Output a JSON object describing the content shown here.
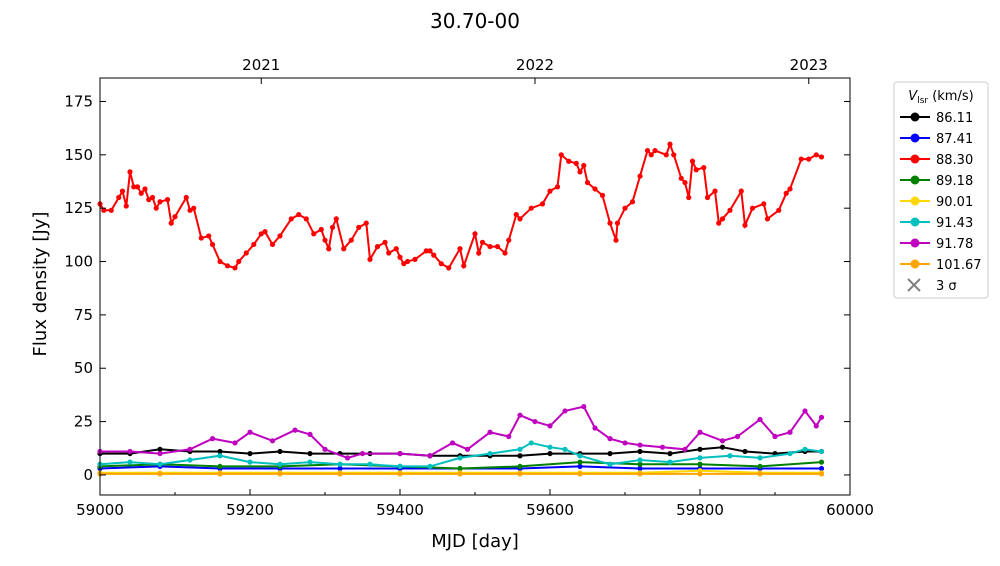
{
  "chart_data": {
    "type": "line",
    "title": "30.70-00",
    "xlabel": "MJD [day]",
    "ylabel": "Flux density [Jy]",
    "xlim": [
      59000,
      60000
    ],
    "ylim": [
      -9.4,
      186
    ],
    "xticks": [
      59000,
      59200,
      59400,
      59600,
      59800,
      60000
    ],
    "yticks": [
      0,
      25,
      50,
      75,
      100,
      125,
      150,
      175
    ],
    "top_axis": {
      "labels": [
        "2021",
        "2022",
        "2023"
      ],
      "mjd": [
        59215,
        59580,
        59945
      ]
    },
    "grid": false,
    "legend": {
      "title": "V_lsr (km/s)",
      "title_main": "V",
      "title_sub": "lsr",
      "title_unit": " (km/s)",
      "placement": "outside-right",
      "sigma_label": "3 σ",
      "sigma_color": "#808080"
    },
    "series": [
      {
        "name": "86.11",
        "color": "#000000",
        "x": [
          59000,
          59040,
          59080,
          59120,
          59160,
          59200,
          59240,
          59280,
          59320,
          59360,
          59400,
          59440,
          59480,
          59520,
          59560,
          59600,
          59640,
          59680,
          59720,
          59760,
          59800,
          59830,
          59860,
          59900,
          59940,
          59962
        ],
        "y": [
          10,
          10,
          12,
          11,
          11,
          10,
          11,
          10,
          10,
          10,
          10,
          9,
          9,
          9,
          9,
          10,
          10,
          10,
          11,
          10,
          12,
          13,
          11,
          10,
          11,
          11
        ]
      },
      {
        "name": "87.41",
        "color": "#0000ff",
        "x": [
          59000,
          59080,
          59160,
          59240,
          59320,
          59400,
          59480,
          59560,
          59640,
          59720,
          59800,
          59880,
          59962
        ],
        "y": [
          3,
          4,
          3,
          3,
          3,
          3,
          3,
          3,
          4,
          3,
          3,
          3,
          3
        ]
      },
      {
        "name": "88.30",
        "color": "#ff0000",
        "x": [
          59000,
          59005,
          59015,
          59025,
          59030,
          59035,
          59040,
          59045,
          59050,
          59055,
          59060,
          59065,
          59070,
          59075,
          59080,
          59090,
          59095,
          59100,
          59115,
          59120,
          59125,
          59135,
          59145,
          59150,
          59160,
          59170,
          59180,
          59185,
          59195,
          59205,
          59215,
          59220,
          59230,
          59240,
          59255,
          59265,
          59275,
          59285,
          59295,
          59300,
          59305,
          59310,
          59315,
          59325,
          59335,
          59345,
          59355,
          59360,
          59370,
          59380,
          59385,
          59395,
          59400,
          59405,
          59410,
          59420,
          59435,
          59440,
          59445,
          59455,
          59465,
          59480,
          59485,
          59500,
          59505,
          59510,
          59520,
          59530,
          59540,
          59545,
          59555,
          59560,
          59575,
          59590,
          59600,
          59610,
          59615,
          59625,
          59635,
          59640,
          59645,
          59650,
          59660,
          59670,
          59680,
          59688,
          59690,
          59700,
          59710,
          59720,
          59730,
          59735,
          59740,
          59755,
          59760,
          59765,
          59775,
          59780,
          59785,
          59790,
          59795,
          59805,
          59810,
          59820,
          59825,
          59830,
          59840,
          59855,
          59860,
          59870,
          59885,
          59890,
          59905,
          59915,
          59920,
          59935,
          59945,
          59955,
          59962
        ],
        "y": [
          127,
          124,
          124,
          130,
          133,
          126,
          142,
          135,
          135,
          132,
          134,
          129,
          130,
          125,
          128,
          129,
          118,
          121,
          130,
          124,
          125,
          111,
          112,
          108,
          100,
          98,
          97,
          100,
          104,
          108,
          113,
          114,
          108,
          112,
          120,
          122,
          120,
          113,
          115,
          110,
          106,
          116,
          120,
          106,
          110,
          116,
          118,
          101,
          107,
          109,
          104,
          106,
          102,
          99,
          100,
          101,
          105,
          105,
          103,
          99,
          97,
          106,
          98,
          113,
          104,
          109,
          107,
          107,
          104,
          110,
          122,
          120,
          125,
          127,
          133,
          135,
          150,
          147,
          146,
          142,
          145,
          137,
          134,
          131,
          118,
          110,
          118,
          125,
          128,
          140,
          152,
          150,
          152,
          150,
          155,
          150,
          139,
          137,
          130,
          147,
          143,
          144,
          130,
          133,
          118,
          120,
          124,
          133,
          117,
          125,
          127,
          120,
          124,
          132,
          134,
          148,
          148,
          150,
          149
        ]
      },
      {
        "name": "89.18",
        "color": "#008000",
        "x": [
          59000,
          59080,
          59160,
          59240,
          59320,
          59400,
          59480,
          59560,
          59640,
          59720,
          59800,
          59880,
          59962
        ],
        "y": [
          4,
          5,
          4,
          4,
          5,
          4,
          3,
          4,
          6,
          5,
          5,
          4,
          6
        ]
      },
      {
        "name": "90.01",
        "color": "#ffd700",
        "x": [
          59000,
          59080,
          59160,
          59240,
          59320,
          59400,
          59480,
          59560,
          59640,
          59720,
          59800,
          59880,
          59962
        ],
        "y": [
          1,
          1,
          1,
          1,
          1,
          1,
          1,
          1,
          1,
          1,
          2,
          1,
          1
        ]
      },
      {
        "name": "91.43",
        "color": "#00bfbf",
        "x": [
          59000,
          59040,
          59080,
          59120,
          59160,
          59200,
          59240,
          59280,
          59320,
          59360,
          59400,
          59440,
          59480,
          59520,
          59560,
          59575,
          59600,
          59620,
          59640,
          59680,
          59720,
          59760,
          59800,
          59840,
          59880,
          59920,
          59940,
          59962
        ],
        "y": [
          5,
          6,
          5,
          7,
          9,
          6,
          5,
          6,
          5,
          5,
          4,
          4,
          8,
          10,
          12,
          15,
          13,
          12,
          9,
          5,
          7,
          6,
          8,
          9,
          8,
          10,
          12,
          11
        ]
      },
      {
        "name": "91.78",
        "color": "#bf00bf",
        "x": [
          59000,
          59040,
          59080,
          59120,
          59150,
          59180,
          59200,
          59230,
          59260,
          59280,
          59300,
          59330,
          59350,
          59400,
          59440,
          59470,
          59490,
          59520,
          59545,
          59560,
          59580,
          59600,
          59620,
          59645,
          59660,
          59680,
          59700,
          59720,
          59750,
          59780,
          59800,
          59830,
          59850,
          59880,
          59900,
          59920,
          59940,
          59955,
          59962
        ],
        "y": [
          11,
          11,
          10,
          12,
          17,
          15,
          20,
          16,
          21,
          19,
          12,
          8,
          10,
          10,
          9,
          15,
          12,
          20,
          18,
          28,
          25,
          23,
          30,
          32,
          22,
          17,
          15,
          14,
          13,
          12,
          20,
          16,
          18,
          26,
          18,
          20,
          30,
          23,
          27
        ]
      },
      {
        "name": "101.67",
        "color": "#ffa500",
        "x": [
          59000,
          59080,
          59160,
          59240,
          59320,
          59400,
          59480,
          59560,
          59640,
          59720,
          59800,
          59880,
          59962
        ],
        "y": [
          0.5,
          0.5,
          0.5,
          0.5,
          0.5,
          0.5,
          0.5,
          0.5,
          0.5,
          0.5,
          0.5,
          0.5,
          0.5
        ]
      }
    ]
  }
}
